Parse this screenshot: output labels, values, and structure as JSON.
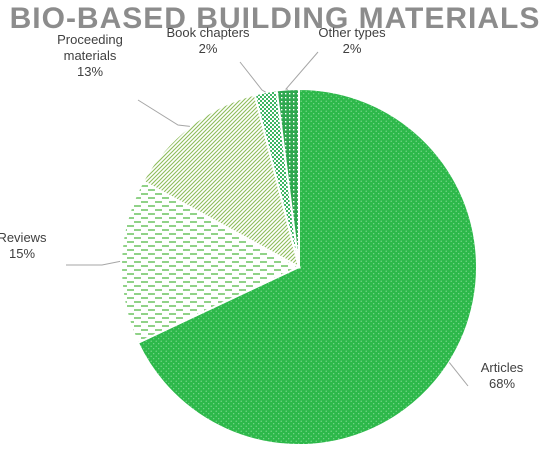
{
  "chart_data": {
    "type": "pie",
    "title": "BIO-BASED BUILDING MATERIALS",
    "slices": [
      {
        "label_lines": [
          "Articles"
        ],
        "pct_label": "68%",
        "value": 68,
        "color": "#2db84a"
      },
      {
        "label_lines": [
          "Reviews"
        ],
        "pct_label": "15%",
        "value": 15,
        "color": "#54b948"
      },
      {
        "label_lines": [
          "Proceeding",
          "materials"
        ],
        "pct_label": "13%",
        "value": 13,
        "color": "#8dbd5a"
      },
      {
        "label_lines": [
          "Book chapters"
        ],
        "pct_label": "2%",
        "value": 2,
        "color": "#3cb562"
      },
      {
        "label_lines": [
          "Other types"
        ],
        "pct_label": "2%",
        "value": 2,
        "color": "#2fa84f"
      }
    ]
  }
}
